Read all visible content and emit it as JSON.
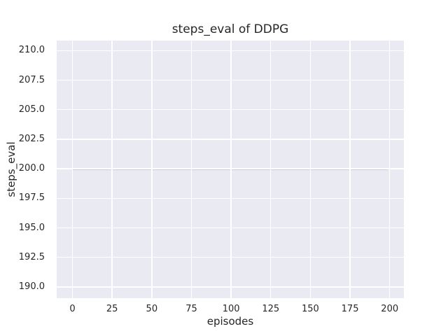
{
  "chart_data": {
    "type": "line",
    "title": "steps_eval of DDPG",
    "xlabel": "episodes",
    "ylabel": "steps_eval",
    "x_ticks": [
      "0",
      "25",
      "50",
      "75",
      "100",
      "125",
      "150",
      "175",
      "200"
    ],
    "y_ticks": [
      "210.0",
      "207.5",
      "205.0",
      "202.5",
      "200.0",
      "197.5",
      "195.0",
      "192.5",
      "190.0"
    ],
    "xlim": [
      -9.95,
      208.95
    ],
    "ylim": [
      189.05,
      210.85
    ],
    "grid": true,
    "legend_position": "none",
    "series": [
      {
        "name": "steps_eval",
        "color": "#4c72b0",
        "x": [
          0,
          199
        ],
        "y": [
          200,
          200
        ],
        "description": "constant value 200 across all episodes 0-199"
      }
    ],
    "colors": {
      "figure_background": "#ffffff",
      "axes_background": "#eaeaf2",
      "grid": "#ffffff",
      "text": "#262626",
      "line": "#4c72b0"
    }
  }
}
